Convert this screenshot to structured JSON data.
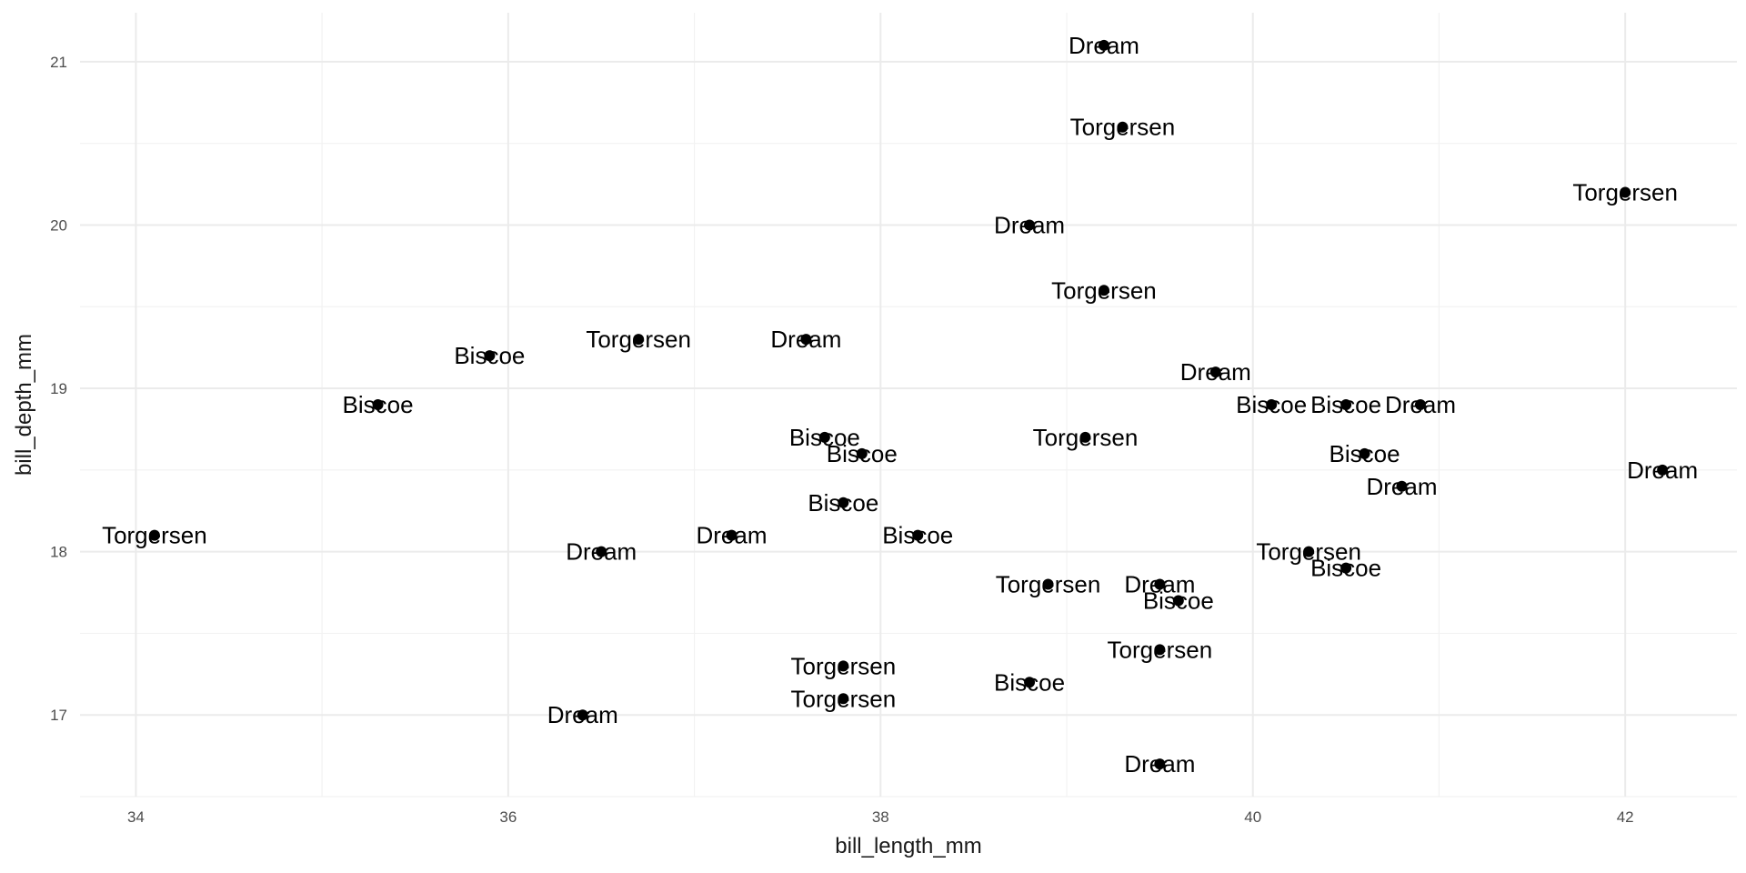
{
  "chart_data": {
    "type": "scatter",
    "xlabel": "bill_length_mm",
    "ylabel": "bill_depth_mm",
    "xlim": [
      33.7,
      42.6
    ],
    "ylim": [
      16.5,
      21.3
    ],
    "x_ticks": [
      34,
      36,
      38,
      40,
      42
    ],
    "y_ticks": [
      17,
      18,
      19,
      20,
      21
    ],
    "grid": true,
    "points": [
      {
        "x": 39.2,
        "y": 21.1,
        "label": "Dream"
      },
      {
        "x": 39.3,
        "y": 20.6,
        "label": "Torgersen"
      },
      {
        "x": 42.0,
        "y": 20.2,
        "label": "Torgersen"
      },
      {
        "x": 38.8,
        "y": 20.0,
        "label": "Dream"
      },
      {
        "x": 39.2,
        "y": 19.6,
        "label": "Torgersen"
      },
      {
        "x": 35.9,
        "y": 19.2,
        "label": "Biscoe"
      },
      {
        "x": 36.7,
        "y": 19.3,
        "label": "Torgersen"
      },
      {
        "x": 37.6,
        "y": 19.3,
        "label": "Dream"
      },
      {
        "x": 39.8,
        "y": 19.1,
        "label": "Dream"
      },
      {
        "x": 35.3,
        "y": 18.9,
        "label": "Biscoe"
      },
      {
        "x": 40.1,
        "y": 18.9,
        "label": "Biscoe"
      },
      {
        "x": 40.5,
        "y": 18.9,
        "label": "Biscoe"
      },
      {
        "x": 40.9,
        "y": 18.9,
        "label": "Dream"
      },
      {
        "x": 37.7,
        "y": 18.7,
        "label": "Biscoe"
      },
      {
        "x": 37.9,
        "y": 18.6,
        "label": "Biscoe"
      },
      {
        "x": 39.1,
        "y": 18.7,
        "label": "Torgersen"
      },
      {
        "x": 40.6,
        "y": 18.6,
        "label": "Biscoe"
      },
      {
        "x": 42.2,
        "y": 18.5,
        "label": "Dream"
      },
      {
        "x": 40.8,
        "y": 18.4,
        "label": "Dream"
      },
      {
        "x": 37.8,
        "y": 18.3,
        "label": "Biscoe"
      },
      {
        "x": 34.1,
        "y": 18.1,
        "label": "Torgersen"
      },
      {
        "x": 37.2,
        "y": 18.1,
        "label": "Dream"
      },
      {
        "x": 38.2,
        "y": 18.1,
        "label": "Biscoe"
      },
      {
        "x": 36.5,
        "y": 18.0,
        "label": "Dream"
      },
      {
        "x": 40.3,
        "y": 18.0,
        "label": "Torgersen"
      },
      {
        "x": 40.5,
        "y": 17.9,
        "label": "Biscoe"
      },
      {
        "x": 38.9,
        "y": 17.8,
        "label": "Torgersen"
      },
      {
        "x": 39.5,
        "y": 17.8,
        "label": "Dream"
      },
      {
        "x": 39.6,
        "y": 17.7,
        "label": "Biscoe"
      },
      {
        "x": 39.5,
        "y": 17.4,
        "label": "Torgersen"
      },
      {
        "x": 37.8,
        "y": 17.3,
        "label": "Torgersen"
      },
      {
        "x": 38.8,
        "y": 17.2,
        "label": "Biscoe"
      },
      {
        "x": 37.8,
        "y": 17.1,
        "label": "Torgersen"
      },
      {
        "x": 36.4,
        "y": 17.0,
        "label": "Dream"
      },
      {
        "x": 39.5,
        "y": 16.7,
        "label": "Dream"
      }
    ]
  }
}
